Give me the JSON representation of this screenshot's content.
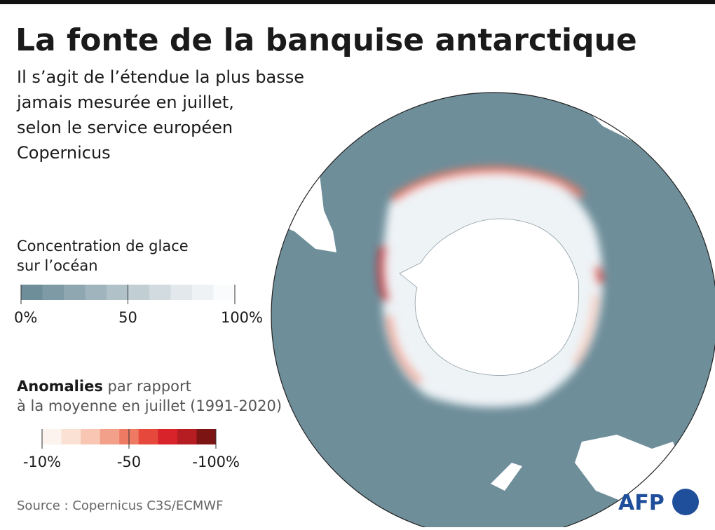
{
  "header": {
    "title": "La fonte de la banquise antarctique",
    "subtitle": [
      "Il s’agit de l’étendue la plus basse",
      "jamais mesurée en juillet,",
      "selon le service européen",
      "Copernicus"
    ]
  },
  "legend_concentration": {
    "title": [
      "Concentration de glace",
      "sur l’océan"
    ],
    "colors": [
      "#6e8e9a",
      "#7e9aa5",
      "#8ea7b1",
      "#9fb4bc",
      "#b0c1c8",
      "#c1ced3",
      "#d2dbdf",
      "#e2e8eb",
      "#eef2f4",
      "#fafbfc"
    ],
    "ticks": [
      "0%",
      "50",
      "100%"
    ]
  },
  "legend_anomaly": {
    "title_bold": "Anomalies",
    "title_rest": " par rapport",
    "title_line2": "à la moyenne en juillet (1991-2020)",
    "colors": [
      "#fdf3ee",
      "#fbe0d4",
      "#f8c6b3",
      "#f3a08a",
      "#ee7a63",
      "#e6493b",
      "#d9232a",
      "#b51d22",
      "#7d1414"
    ],
    "ticks": [
      "-10%",
      "-50",
      "-100%"
    ]
  },
  "footer": {
    "source": "Source : Copernicus C3S/ECMWF",
    "logo": "AFP"
  }
}
